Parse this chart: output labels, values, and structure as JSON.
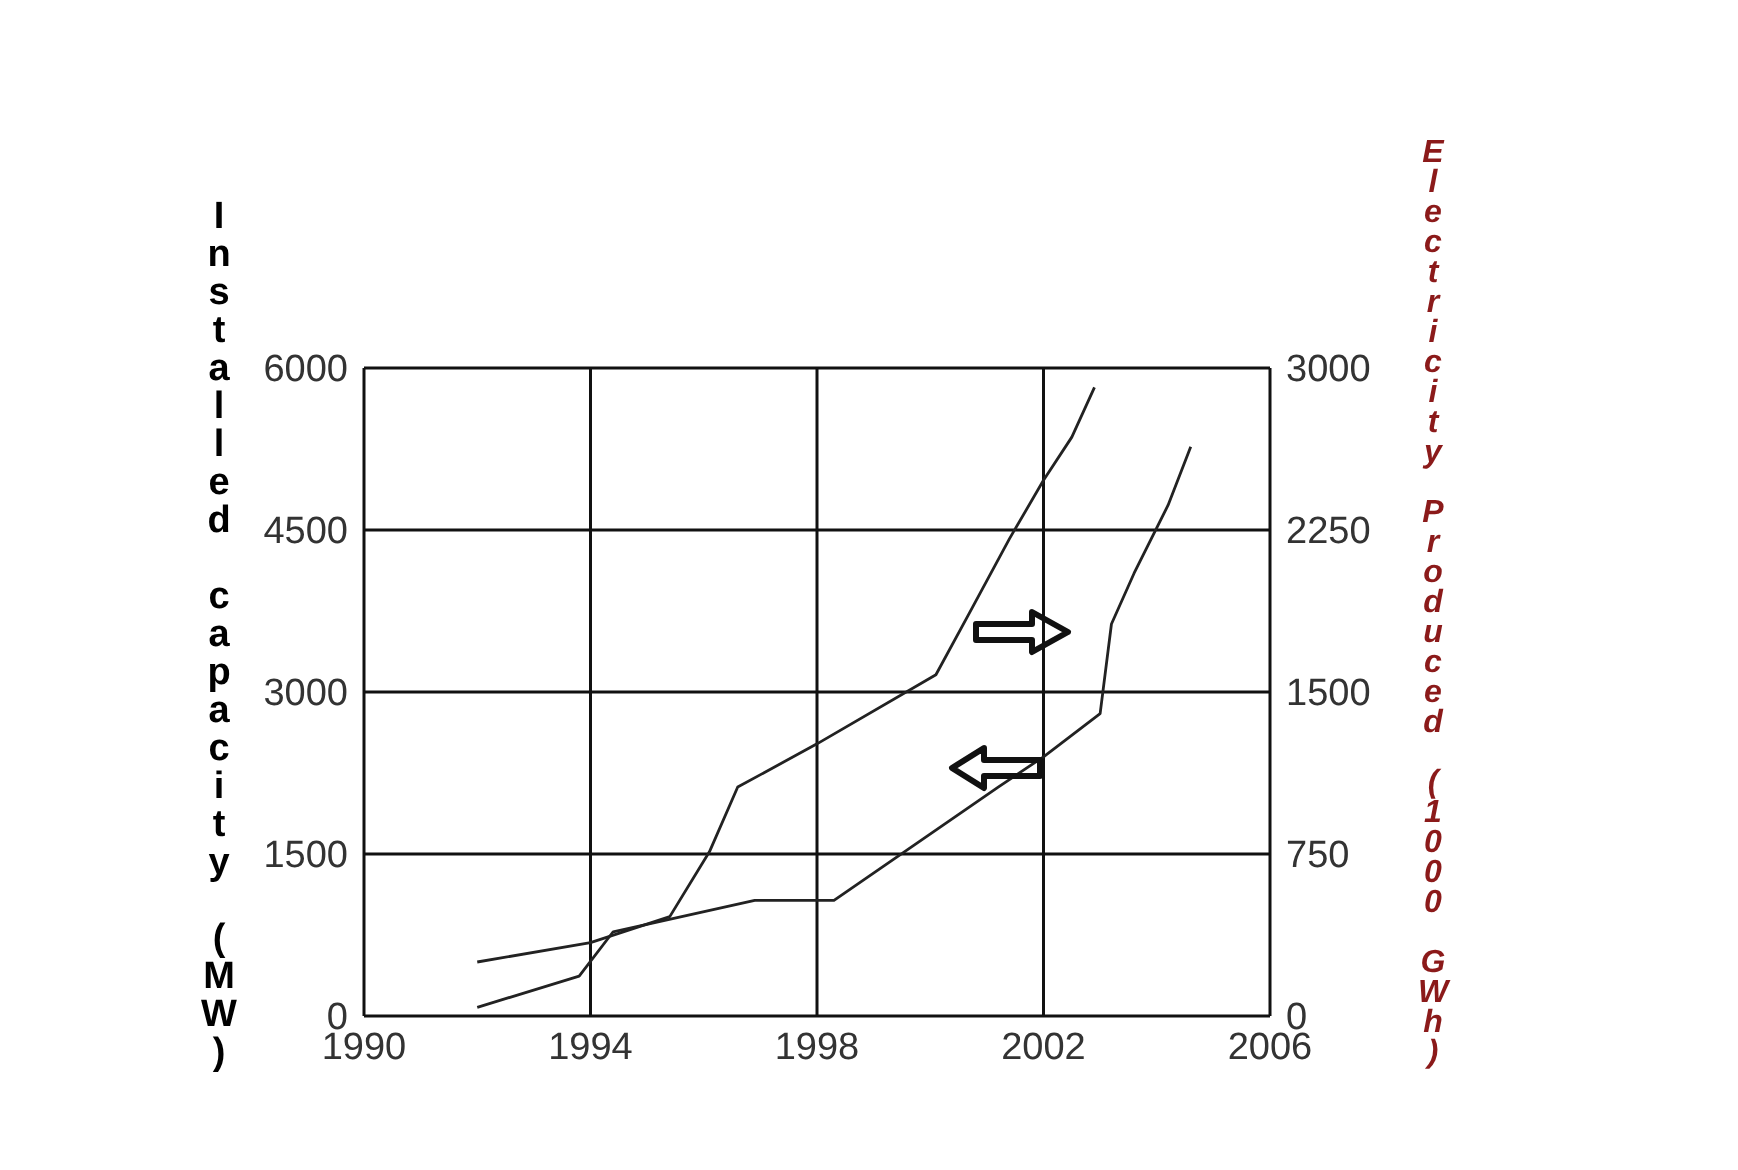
{
  "chart_data": {
    "type": "line",
    "ylabel": "Installed capacity (MW)",
    "y2label": "Electricity Produced (1000 GWh)",
    "series": [
      {
        "color": "#222222",
        "axis": "y2",
        "x": [
          1992,
          1994,
          1995.4,
          1996.1,
          1996.6,
          1998,
          2000.1,
          2000.7,
          2001.4,
          2002,
          2002.5,
          2002.9
        ],
        "values": [
          250,
          340,
          460,
          760,
          1060,
          1260,
          1580,
          1870,
          2210,
          2480,
          2680,
          2910
        ]
      },
      {
        "color": "#222222",
        "axis": "y",
        "x": [
          1992,
          1993.8,
          1994.4,
          1996.9,
          1998.3,
          1999.6,
          2001.2,
          2002,
          2003,
          2003.2,
          2003.6,
          2004.2,
          2004.6
        ],
        "values": [
          80,
          370,
          780,
          1070,
          1070,
          1540,
          2120,
          2400,
          2800,
          3630,
          4100,
          4730,
          5270
        ]
      }
    ],
    "xlim": [
      1990,
      2006
    ],
    "xticks": [
      1990,
      1994,
      1998,
      2002,
      2006
    ],
    "ylim": [
      0,
      6000
    ],
    "yticks": [
      0,
      1500,
      3000,
      4500,
      6000
    ],
    "y2lim": [
      0,
      3000
    ],
    "y2ticks": [
      0,
      750,
      1500,
      2250,
      3000
    ],
    "grid": true,
    "legend": false,
    "marker": "none",
    "line_style": "solid"
  }
}
